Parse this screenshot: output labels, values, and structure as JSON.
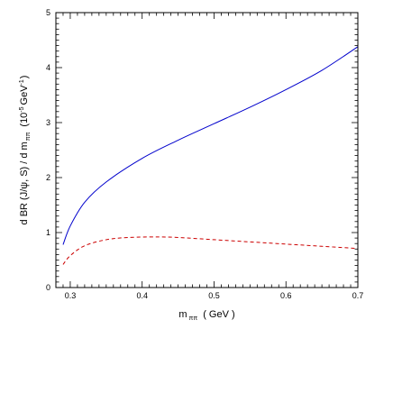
{
  "chart_data": {
    "type": "line",
    "xlabel": {
      "main": "m",
      "sub": "ππ",
      "unit": "( GeV )"
    },
    "ylabel": {
      "main": "d BR (J/ψ, S) / d m",
      "sub": "ππ",
      "unit_prefix": "(10",
      "unit_exp": "-5",
      "unit_main": "GeV",
      "unit_exp2": "-1",
      "unit_suffix": ")"
    },
    "xlim": [
      0.28,
      0.7
    ],
    "ylim": [
      0,
      5
    ],
    "xticks": [
      0.3,
      0.4,
      0.5,
      0.6,
      0.7
    ],
    "xtick_labels": [
      "0.3",
      "0.4",
      "0.5",
      "0.6",
      "0.7"
    ],
    "yticks": [
      0,
      1,
      2,
      3,
      4,
      5
    ],
    "ytick_labels": [
      "0",
      "1",
      "2",
      "3",
      "4",
      "5"
    ],
    "grid": false,
    "series": [
      {
        "style": "solid",
        "color": "#0000cc",
        "x": [
          0.29,
          0.3,
          0.32,
          0.35,
          0.4,
          0.45,
          0.5,
          0.55,
          0.6,
          0.65,
          0.7
        ],
        "y": [
          0.78,
          1.12,
          1.55,
          1.92,
          2.35,
          2.68,
          2.98,
          3.28,
          3.6,
          3.95,
          4.38
        ]
      },
      {
        "style": "dashed",
        "color": "#cc0000",
        "x": [
          0.29,
          0.3,
          0.32,
          0.35,
          0.38,
          0.42,
          0.45,
          0.5,
          0.55,
          0.6,
          0.65,
          0.7
        ],
        "y": [
          0.42,
          0.58,
          0.76,
          0.87,
          0.91,
          0.92,
          0.91,
          0.87,
          0.83,
          0.79,
          0.75,
          0.71
        ]
      }
    ]
  }
}
